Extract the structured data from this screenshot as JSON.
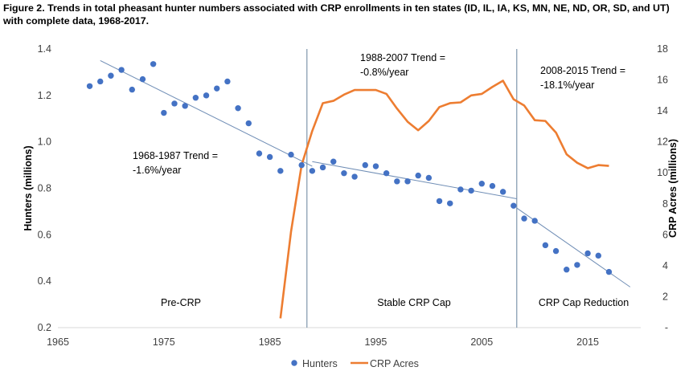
{
  "figure": {
    "title_lines": [
      "Figure 2.  Trends in total pheasant hunter numbers associated with CRP enrollments in ten states (ID, IL, IA, KS, MN, NE, ND, OR, SD, and UT)",
      "with complete data, 1968-2017."
    ]
  },
  "chart_data": {
    "type": "scatter",
    "grid": false,
    "legend_position": "bottom",
    "x_axis": {
      "range": [
        1965,
        2020
      ],
      "ticks": [
        "1965",
        "1975",
        "1985",
        "1995",
        "2005",
        "2015"
      ],
      "tick_values": [
        1965,
        1975,
        1985,
        1995,
        2005,
        2015
      ]
    },
    "y_left": {
      "label": "Hunters (millions)",
      "range": [
        0.2,
        1.4
      ],
      "ticks": [
        "0.2",
        "0.4",
        "0.6",
        "0.8",
        "1.0",
        "1.2",
        "1.4"
      ],
      "tick_values": [
        0.2,
        0.4,
        0.6,
        0.8,
        1.0,
        1.2,
        1.4
      ]
    },
    "y_right": {
      "label": "CRP Acres (millions)",
      "range": [
        0,
        18
      ],
      "ticks": [
        "-",
        "2",
        "4",
        "6",
        "8",
        "10",
        "12",
        "14",
        "16",
        "18"
      ],
      "tick_values": [
        0,
        2,
        4,
        6,
        8,
        10,
        12,
        14,
        16,
        18
      ]
    },
    "series": [
      {
        "name": "Hunters",
        "kind": "scatter",
        "axis": "left",
        "color": "#4472C4",
        "x": [
          1968,
          1969,
          1970,
          1971,
          1972,
          1973,
          1974,
          1975,
          1976,
          1977,
          1978,
          1979,
          1980,
          1981,
          1982,
          1983,
          1984,
          1985,
          1986,
          1987,
          1988,
          1989,
          1990,
          1991,
          1992,
          1993,
          1994,
          1995,
          1996,
          1997,
          1998,
          1999,
          2000,
          2001,
          2002,
          2003,
          2004,
          2005,
          2006,
          2007,
          2008,
          2009,
          2010,
          2011,
          2012,
          2013,
          2014,
          2015,
          2016,
          2017
        ],
        "y": [
          1.24,
          1.26,
          1.285,
          1.31,
          1.225,
          1.27,
          1.335,
          1.125,
          1.165,
          1.155,
          1.19,
          1.2,
          1.23,
          1.26,
          1.145,
          1.08,
          0.95,
          0.935,
          0.875,
          0.945,
          0.9,
          0.875,
          0.89,
          0.915,
          0.865,
          0.85,
          0.9,
          0.895,
          0.865,
          0.83,
          0.83,
          0.855,
          0.845,
          0.745,
          0.735,
          0.795,
          0.79,
          0.82,
          0.81,
          0.785,
          0.725,
          0.67,
          0.66,
          0.555,
          0.53,
          0.45,
          0.47,
          0.52,
          0.51,
          0.44
        ]
      },
      {
        "name": "CRP Acres",
        "kind": "line",
        "axis": "right",
        "color": "#ED7D31",
        "x": [
          1986,
          1987,
          1988,
          1989,
          1990,
          1991,
          1992,
          1993,
          1994,
          1995,
          1996,
          1997,
          1998,
          1999,
          2000,
          2001,
          2002,
          2003,
          2004,
          2005,
          2006,
          2007,
          2008,
          2009,
          2010,
          2011,
          2012,
          2013,
          2014,
          2015,
          2016,
          2017
        ],
        "y": [
          0.6,
          6.2,
          10.5,
          12.7,
          14.5,
          14.65,
          15.05,
          15.35,
          15.35,
          15.35,
          15.1,
          14.15,
          13.3,
          12.75,
          13.35,
          14.25,
          14.5,
          14.55,
          15.0,
          15.1,
          15.55,
          15.95,
          14.75,
          14.35,
          13.4,
          13.35,
          12.6,
          11.2,
          10.65,
          10.3,
          10.5,
          10.45
        ]
      }
    ],
    "trend_lines": [
      {
        "x": [
          1969,
          1989
        ],
        "y": [
          1.35,
          0.895
        ]
      },
      {
        "x": [
          1989,
          2008.3
        ],
        "y": [
          0.915,
          0.755
        ]
      },
      {
        "x": [
          2008.3,
          2019
        ],
        "y": [
          0.715,
          0.375
        ]
      }
    ],
    "period_dividers": [
      1988.5,
      2008.3
    ],
    "annotations": [
      {
        "lines": [
          "1968-1987 Trend =",
          "-1.6%/year"
        ]
      },
      {
        "lines": [
          "1988-2007 Trend =",
          "-0.8%/year"
        ]
      },
      {
        "lines": [
          "2008-2015 Trend =",
          "-18.1%/year"
        ]
      }
    ],
    "period_labels": [
      "Pre-CRP",
      "Stable CRP Cap",
      "CRP Cap Reduction"
    ],
    "legend": [
      "Hunters",
      "CRP Acres"
    ]
  }
}
